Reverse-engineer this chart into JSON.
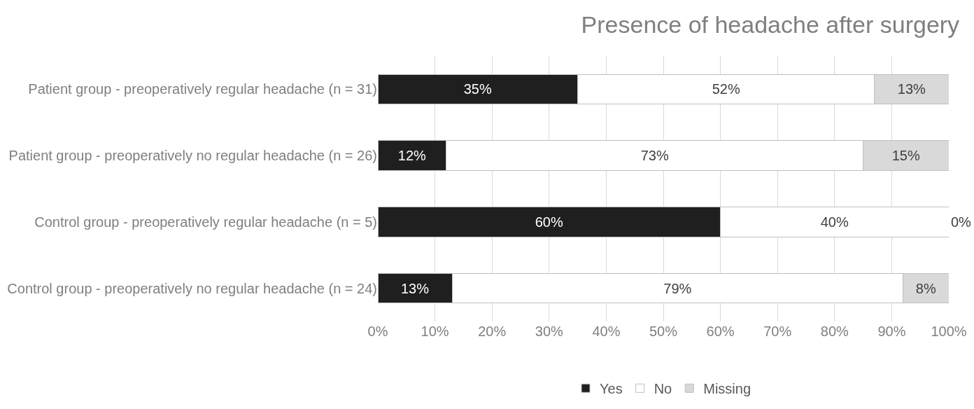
{
  "chart_data": {
    "type": "bar",
    "orientation": "horizontal",
    "stacked": true,
    "title": "Presence of headache after surgery",
    "categories": [
      "Patient group - preoperatively regular headache (n = 31)",
      "Patient group - preoperatively no regular headache (n = 26)",
      "Control group - preoperatively regular headache (n = 5)",
      "Control group - preoperatively no regular headache (n = 24)"
    ],
    "series": [
      {
        "name": "Yes",
        "color": "#1f1f1f",
        "values": [
          35,
          12,
          60,
          13
        ],
        "value_labels": [
          "35%",
          "12%",
          "60%",
          "13%"
        ]
      },
      {
        "name": "No",
        "color": "#ffffff",
        "values": [
          52,
          73,
          40,
          79
        ],
        "value_labels": [
          "52%",
          "73%",
          "40%",
          "79%"
        ]
      },
      {
        "name": "Missing",
        "color": "#d9d9d9",
        "values": [
          13,
          15,
          0,
          8
        ],
        "value_labels": [
          "13%",
          "15%",
          "0%",
          "8%"
        ]
      }
    ],
    "xlim": [
      0,
      100
    ],
    "xticks": [
      {
        "value": 0,
        "label": "0%"
      },
      {
        "value": 10,
        "label": "10%"
      },
      {
        "value": 20,
        "label": "20%"
      },
      {
        "value": 30,
        "label": "30%"
      },
      {
        "value": 40,
        "label": "40%"
      },
      {
        "value": 50,
        "label": "50%"
      },
      {
        "value": 60,
        "label": "60%"
      },
      {
        "value": 70,
        "label": "70%"
      },
      {
        "value": 80,
        "label": "80%"
      },
      {
        "value": 90,
        "label": "90%"
      },
      {
        "value": 100,
        "label": "100%"
      }
    ],
    "grid": "x",
    "legend": "bottom"
  }
}
